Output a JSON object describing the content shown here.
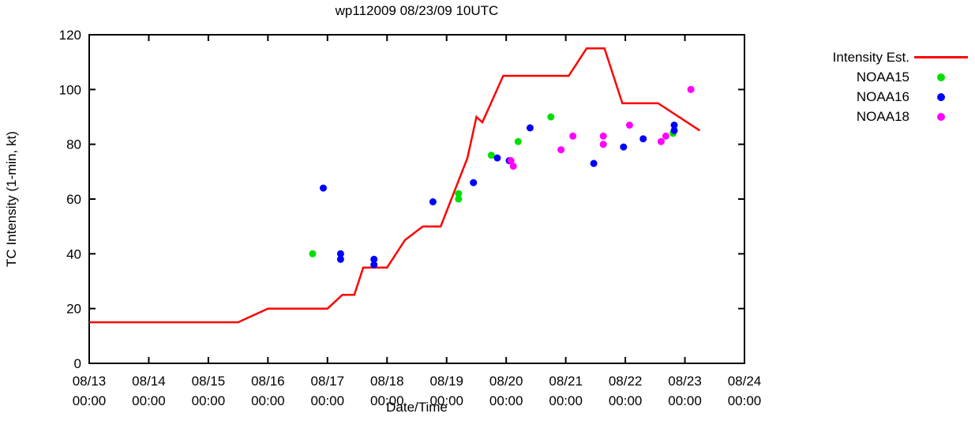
{
  "title": "wp112009 08/23/09 10UTC",
  "legend": [
    {
      "label": "Intensity Est.",
      "type": "line",
      "color": "#ff0000"
    },
    {
      "label": "NOAA15",
      "type": "dot",
      "color": "#00e000"
    },
    {
      "label": "NOAA16",
      "type": "dot",
      "color": "#0000ff"
    },
    {
      "label": "NOAA18",
      "type": "dot",
      "color": "#ff00ff"
    }
  ],
  "chart_data": {
    "type": "line",
    "title": "wp112009 08/23/09 10UTC",
    "xlabel": "Date/Time",
    "ylabel": "TC Intensity (1-min, kt)",
    "x_units": "days since 08/13 00:00",
    "xlim_days": [
      0,
      11
    ],
    "ylim": [
      0,
      120
    ],
    "y_ticks": [
      0,
      20,
      40,
      60,
      80,
      100,
      120
    ],
    "x_tick_dates": [
      "08/13",
      "08/14",
      "08/15",
      "08/16",
      "08/17",
      "08/18",
      "08/19",
      "08/20",
      "08/21",
      "08/22",
      "08/23",
      "08/24"
    ],
    "x_tick_time": "00:00",
    "grid": false,
    "legend_position": "outside-right",
    "series": [
      {
        "name": "Intensity Est.",
        "style": "line",
        "color": "#ff0000",
        "points": [
          [
            0,
            15
          ],
          [
            2.5,
            15
          ],
          [
            3,
            20
          ],
          [
            4,
            20
          ],
          [
            4.25,
            25
          ],
          [
            4.45,
            25
          ],
          [
            4.6,
            35
          ],
          [
            5,
            35
          ],
          [
            5.3,
            45
          ],
          [
            5.6,
            50
          ],
          [
            5.9,
            50
          ],
          [
            6.35,
            75
          ],
          [
            6.5,
            90
          ],
          [
            6.6,
            88
          ],
          [
            6.95,
            105
          ],
          [
            8.05,
            105
          ],
          [
            8.35,
            115
          ],
          [
            8.65,
            115
          ],
          [
            8.95,
            95
          ],
          [
            9.55,
            95
          ],
          [
            10.25,
            85
          ]
        ]
      },
      {
        "name": "NOAA15",
        "style": "scatter",
        "color": "#00e000",
        "points": [
          [
            3.75,
            40
          ],
          [
            6.2,
            60
          ],
          [
            6.2,
            62
          ],
          [
            6.75,
            76
          ],
          [
            7.2,
            81
          ],
          [
            7.75,
            90
          ],
          [
            9.8,
            84
          ]
        ]
      },
      {
        "name": "NOAA16",
        "style": "scatter",
        "color": "#0000ff",
        "points": [
          [
            3.93,
            64
          ],
          [
            4.22,
            40
          ],
          [
            4.22,
            38
          ],
          [
            4.78,
            38
          ],
          [
            4.78,
            36
          ],
          [
            5.77,
            59
          ],
          [
            6.45,
            66
          ],
          [
            6.85,
            75
          ],
          [
            7.05,
            74
          ],
          [
            7.4,
            86
          ],
          [
            8.47,
            73
          ],
          [
            8.97,
            79
          ],
          [
            9.3,
            82
          ],
          [
            9.82,
            87
          ],
          [
            9.82,
            85
          ]
        ]
      },
      {
        "name": "NOAA18",
        "style": "scatter",
        "color": "#ff00ff",
        "points": [
          [
            7.08,
            74
          ],
          [
            7.12,
            72
          ],
          [
            7.92,
            78
          ],
          [
            8.12,
            83
          ],
          [
            8.63,
            80
          ],
          [
            8.63,
            83
          ],
          [
            9.07,
            87
          ],
          [
            9.6,
            81
          ],
          [
            9.68,
            83
          ],
          [
            10.1,
            100
          ]
        ]
      }
    ]
  }
}
